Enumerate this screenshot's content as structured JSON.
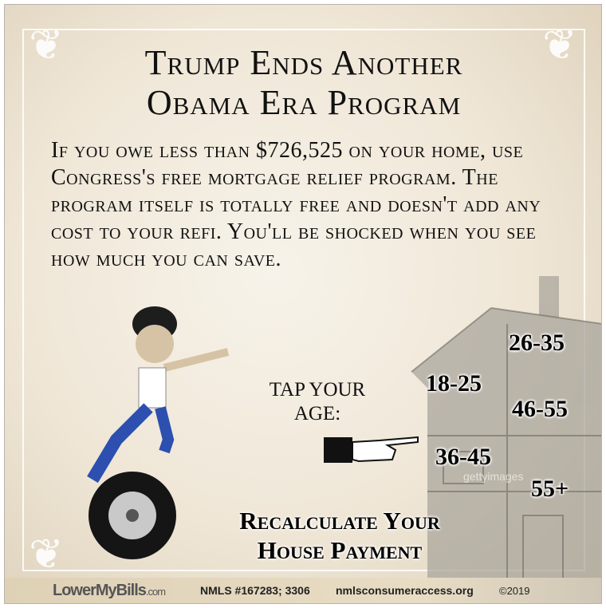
{
  "headline": {
    "line1": "Trump Ends Another",
    "line2": "Obama Era Program"
  },
  "body_text": "If you owe less than $726,525 on your home, use Congress's free mortgage relief program. The program itself is totally free and doesn't add any cost to your refi. You'll be shocked when you see how much you can save.",
  "tap_prompt": {
    "line1": "TAP YOUR",
    "line2": "AGE:"
  },
  "age_options": [
    "26-35",
    "18-25",
    "46-55",
    "36-45",
    "55+"
  ],
  "cta": {
    "line1": "Recalculate Your",
    "line2": "House Payment"
  },
  "watermark": "gettyimages",
  "footer": {
    "logo_main": "LowerMyBills",
    "logo_suffix": ".com",
    "nmls": "NMLS #167283; 3306",
    "site": "nmlsconsumeraccess.org",
    "copyright": "©2019"
  },
  "colors": {
    "background": "#efe6d6",
    "text": "#111111"
  }
}
